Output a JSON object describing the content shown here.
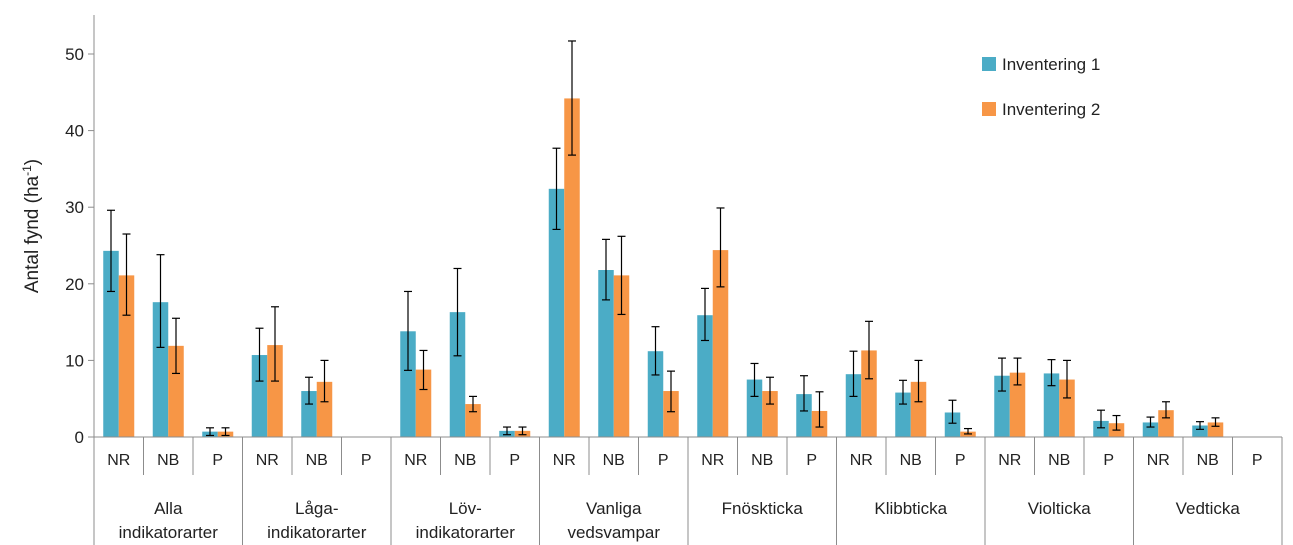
{
  "chart_data": {
    "type": "bar",
    "ylabel": "Antal fynd (ha",
    "ylabel_sup": "-1",
    "ylabel_end": ")",
    "ylim": [
      0,
      55
    ],
    "yticks": [
      "0",
      "10",
      "20",
      "30",
      "40",
      "50"
    ],
    "grid": false,
    "legend_position": "top-right",
    "groups": [
      {
        "lines": [
          "Alla",
          "indikatorarter"
        ]
      },
      {
        "lines": [
          "Låga-",
          "indikatorarter"
        ]
      },
      {
        "lines": [
          "Löv-",
          "indikatorarter"
        ]
      },
      {
        "lines": [
          "Vanliga",
          "vedsvampar"
        ]
      },
      {
        "lines": [
          "Fnöskticka"
        ]
      },
      {
        "lines": [
          "Klibbticka"
        ]
      },
      {
        "lines": [
          "Violticka"
        ]
      },
      {
        "lines": [
          "Vedticka"
        ]
      }
    ],
    "subcategories": [
      "NR",
      "NB",
      "P"
    ],
    "series": [
      {
        "name": "Inventering 1",
        "color": "#4BACC6",
        "values": [
          24.3,
          17.6,
          0.7,
          10.7,
          6.0,
          0.0,
          13.8,
          16.3,
          0.8,
          32.4,
          21.8,
          11.2,
          15.9,
          7.5,
          5.6,
          8.2,
          5.8,
          3.2,
          8.0,
          8.3,
          2.1,
          1.9,
          1.5,
          0.0
        ],
        "err_low": [
          19.0,
          11.7,
          0.2,
          7.3,
          4.3,
          0.0,
          8.7,
          10.6,
          0.3,
          27.1,
          17.9,
          8.1,
          12.6,
          5.3,
          3.4,
          5.3,
          4.3,
          1.8,
          6.0,
          6.7,
          1.2,
          1.3,
          1.0,
          0.0
        ],
        "err_high": [
          29.6,
          23.8,
          1.2,
          14.2,
          7.8,
          0.0,
          19.0,
          22.0,
          1.3,
          37.7,
          25.8,
          14.4,
          19.4,
          9.6,
          8.0,
          11.2,
          7.4,
          4.8,
          10.3,
          10.1,
          3.5,
          2.6,
          2.0,
          0.0
        ]
      },
      {
        "name": "Inventering 2",
        "color": "#F79646",
        "values": [
          21.1,
          11.9,
          0.7,
          12.0,
          7.2,
          0.0,
          8.8,
          4.3,
          0.8,
          44.2,
          21.1,
          6.0,
          24.4,
          6.0,
          3.4,
          11.3,
          7.2,
          0.7,
          8.4,
          7.5,
          1.8,
          3.5,
          1.9,
          0.0
        ],
        "err_low": [
          15.9,
          8.3,
          0.2,
          7.3,
          4.6,
          0.0,
          6.2,
          3.3,
          0.3,
          36.8,
          16.0,
          3.3,
          19.6,
          4.3,
          1.3,
          7.6,
          4.6,
          0.4,
          6.8,
          5.1,
          0.9,
          2.5,
          1.4,
          0.0
        ],
        "err_high": [
          26.5,
          15.5,
          1.2,
          17.0,
          10.0,
          0.0,
          11.3,
          5.3,
          1.3,
          51.7,
          26.2,
          8.6,
          29.9,
          7.8,
          5.9,
          15.1,
          10.0,
          1.1,
          10.3,
          10.0,
          2.8,
          4.6,
          2.5,
          0.0
        ]
      }
    ]
  }
}
